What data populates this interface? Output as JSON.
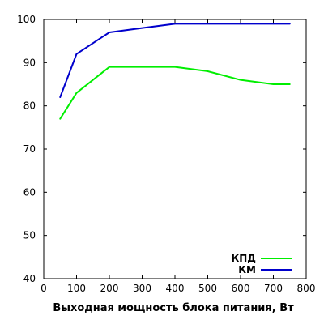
{
  "chart_data": {
    "type": "line",
    "title": "",
    "xlabel": "Выходная мощность блока питания, Вт",
    "ylabel": "",
    "xlim": [
      0,
      800
    ],
    "ylim": [
      40,
      100
    ],
    "x_ticks": [
      0,
      100,
      200,
      300,
      400,
      500,
      600,
      700,
      800
    ],
    "y_ticks": [
      40,
      50,
      60,
      70,
      80,
      90,
      100
    ],
    "grid": false,
    "legend_position": "bottom-right",
    "series": [
      {
        "name": "КПД",
        "color": "#00ee00",
        "x": [
          50,
          100,
          200,
          300,
          400,
          500,
          600,
          700,
          750
        ],
        "y": [
          77,
          83,
          89,
          89,
          89,
          88,
          86,
          85,
          85
        ]
      },
      {
        "name": "КМ",
        "color": "#0000cc",
        "x": [
          50,
          100,
          200,
          300,
          400,
          500,
          600,
          700,
          750
        ],
        "y": [
          82,
          92,
          97,
          98,
          99,
          99,
          99,
          99,
          99
        ]
      }
    ]
  }
}
